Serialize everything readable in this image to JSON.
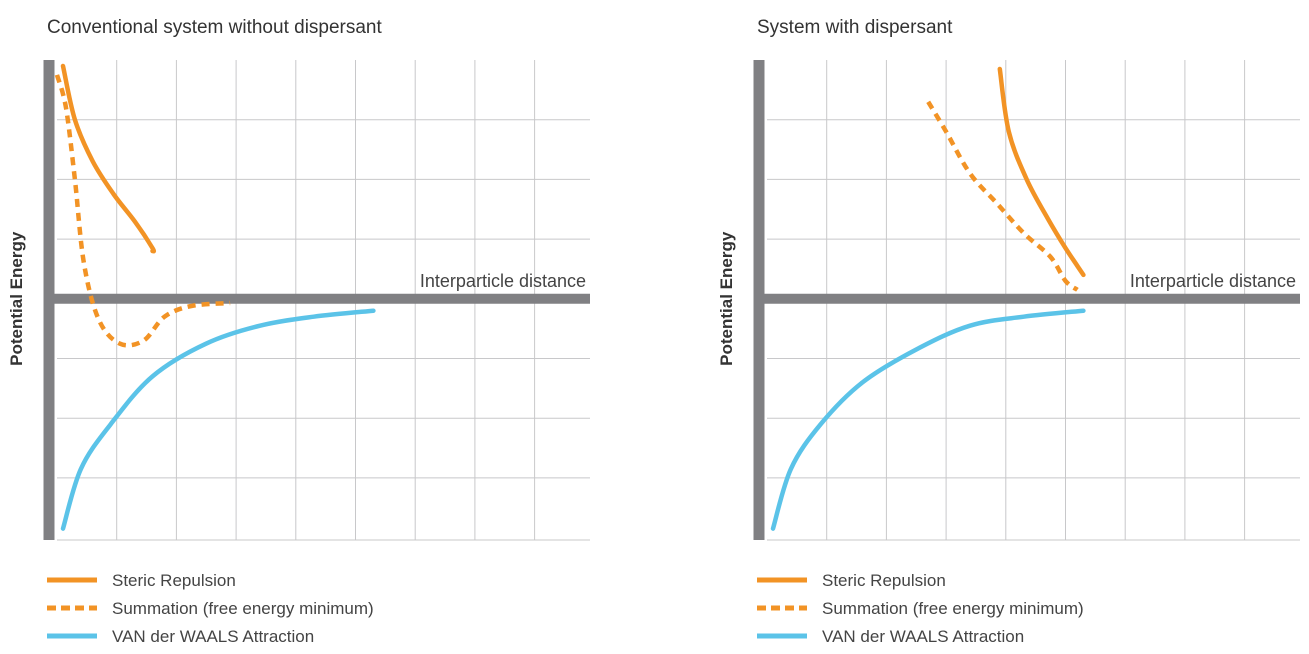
{
  "chart_data": [
    {
      "type": "line",
      "title": "Conventional system without dispersant",
      "xlabel": "Interparticle distance",
      "ylabel": "Potential Energy",
      "x_grid_cells": 9,
      "y_grid_cells": 8,
      "grid": true,
      "ticks_labeled": false,
      "series": [
        {
          "name": "Steric Repulsion",
          "style": "solid",
          "color": "#F29325",
          "points": [
            [
              0.1,
              3.9
            ],
            [
              0.3,
              3.0
            ],
            [
              0.6,
              2.3
            ],
            [
              0.95,
              1.75
            ],
            [
              1.3,
              1.3
            ],
            [
              1.6,
              0.85
            ],
            [
              1.6,
              0.8
            ]
          ]
        },
        {
          "name": "Summation (free energy minimum)",
          "style": "dashed",
          "color": "#F29325",
          "points": [
            [
              0.0,
              3.75
            ],
            [
              0.15,
              3.2
            ],
            [
              0.3,
              2.0
            ],
            [
              0.45,
              0.6
            ],
            [
              0.7,
              -0.35
            ],
            [
              1.05,
              -0.75
            ],
            [
              1.45,
              -0.7
            ],
            [
              1.8,
              -0.3
            ],
            [
              2.25,
              -0.12
            ],
            [
              2.9,
              -0.07
            ]
          ]
        },
        {
          "name": "VAN der WAALS  Attraction",
          "style": "solid",
          "color": "#5BC3E8",
          "points": [
            [
              0.1,
              -3.85
            ],
            [
              0.4,
              -2.85
            ],
            [
              0.9,
              -2.1
            ],
            [
              1.6,
              -1.3
            ],
            [
              2.5,
              -0.75
            ],
            [
              3.4,
              -0.45
            ],
            [
              4.3,
              -0.3
            ],
            [
              5.3,
              -0.2
            ]
          ]
        }
      ],
      "legend": [
        {
          "label": "Steric Repulsion",
          "style": "solid",
          "color": "#F29325"
        },
        {
          "label": "Summation (free energy minimum)",
          "style": "dashed",
          "color": "#F29325"
        },
        {
          "label": "VAN der WAALS  Attraction",
          "style": "solid",
          "color": "#5BC3E8"
        }
      ]
    },
    {
      "type": "line",
      "title": "System with dispersant",
      "xlabel": "Interparticle distance",
      "ylabel": "Potential Energy",
      "x_grid_cells": 9,
      "y_grid_cells": 8,
      "grid": true,
      "ticks_labeled": false,
      "series": [
        {
          "name": "Steric Repulsion",
          "style": "solid",
          "color": "#F29325",
          "points": [
            [
              3.9,
              3.85
            ],
            [
              4.05,
              2.8
            ],
            [
              4.35,
              2.0
            ],
            [
              4.7,
              1.35
            ],
            [
              5.0,
              0.85
            ],
            [
              5.2,
              0.55
            ],
            [
              5.3,
              0.4
            ]
          ]
        },
        {
          "name": "Summation (free energy minimum)",
          "style": "dashed",
          "color": "#F29325",
          "points": [
            [
              2.7,
              3.3
            ],
            [
              3.0,
              2.8
            ],
            [
              3.4,
              2.1
            ],
            [
              3.85,
              1.6
            ],
            [
              4.3,
              1.1
            ],
            [
              4.75,
              0.7
            ],
            [
              5.0,
              0.3
            ],
            [
              5.2,
              0.15
            ]
          ]
        },
        {
          "name": "VAN der WAALS  Attraction",
          "style": "solid",
          "color": "#5BC3E8",
          "points": [
            [
              0.1,
              -3.85
            ],
            [
              0.4,
              -2.85
            ],
            [
              0.9,
              -2.1
            ],
            [
              1.6,
              -1.4
            ],
            [
              2.5,
              -0.85
            ],
            [
              3.4,
              -0.45
            ],
            [
              4.3,
              -0.3
            ],
            [
              5.3,
              -0.2
            ]
          ]
        }
      ],
      "legend": [
        {
          "label": "Steric Repulsion",
          "style": "solid",
          "color": "#F29325"
        },
        {
          "label": "Summation (free energy minimum)",
          "style": "dashed",
          "color": "#F29325"
        },
        {
          "label": "VAN der WAALS  Attraction",
          "style": "solid",
          "color": "#5BC3E8"
        }
      ]
    }
  ],
  "colors": {
    "axis": "#808083",
    "grid": "#C8C8CA",
    "orange": "#F29325",
    "blue": "#5BC3E8"
  }
}
